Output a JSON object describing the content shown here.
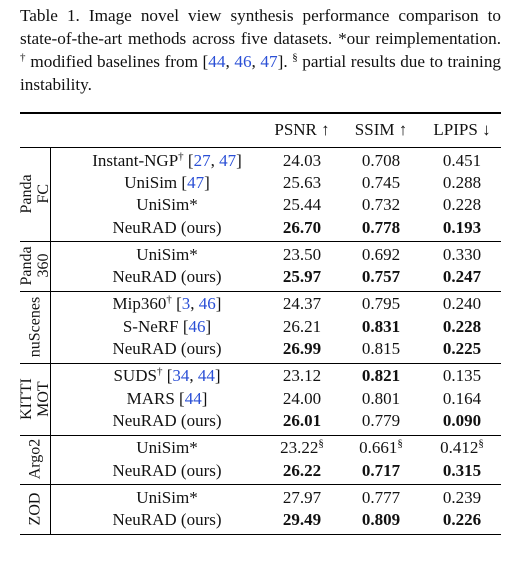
{
  "caption": [
    {
      "t": "Table 1.  Image novel view synthesis performance comparison to state-of-the-art methods across five datasets. *our reimplementa­tion. "
    },
    {
      "t": "†",
      "sup": true
    },
    {
      "t": " modified baselines from ["
    },
    {
      "t": "44",
      "cite": true
    },
    {
      "t": ", "
    },
    {
      "t": "46",
      "cite": true
    },
    {
      "t": ", "
    },
    {
      "t": "47",
      "cite": true
    },
    {
      "t": "]. "
    },
    {
      "t": "§",
      "sup": true
    },
    {
      "t": " partial results due to training instability."
    }
  ],
  "table": {
    "header": [
      "PSNR ↑",
      "SSIM ↑",
      "LPIPS ↓"
    ],
    "groups": [
      {
        "label": [
          "Panda",
          "FC"
        ],
        "rows": [
          {
            "method": [
              {
                "t": "Instant-NGP"
              },
              {
                "t": "†",
                "sup": true
              },
              {
                "t": " ["
              },
              {
                "t": "27",
                "cite": true
              },
              {
                "t": ", "
              },
              {
                "t": "47",
                "cite": true
              },
              {
                "t": "]"
              }
            ],
            "cells": [
              {
                "t": "24.03"
              },
              {
                "t": "0.708"
              },
              {
                "t": "0.451"
              }
            ]
          },
          {
            "method": [
              {
                "t": "UniSim ["
              },
              {
                "t": "47",
                "cite": true
              },
              {
                "t": "]"
              }
            ],
            "cells": [
              {
                "t": "25.63"
              },
              {
                "t": "0.745"
              },
              {
                "t": "0.288"
              }
            ]
          },
          {
            "method": [
              {
                "t": "UniSim*"
              }
            ],
            "cells": [
              {
                "t": "25.44"
              },
              {
                "t": "0.732"
              },
              {
                "t": "0.228"
              }
            ]
          },
          {
            "method": [
              {
                "t": "NeuRAD (ours)"
              }
            ],
            "cells": [
              {
                "t": "26.70",
                "bold": true
              },
              {
                "t": "0.778",
                "bold": true
              },
              {
                "t": "0.193",
                "bold": true
              }
            ]
          }
        ]
      },
      {
        "label": [
          "Panda",
          "360"
        ],
        "rows": [
          {
            "method": [
              {
                "t": "UniSim*"
              }
            ],
            "cells": [
              {
                "t": "23.50"
              },
              {
                "t": "0.692"
              },
              {
                "t": "0.330"
              }
            ]
          },
          {
            "method": [
              {
                "t": "NeuRAD (ours)"
              }
            ],
            "cells": [
              {
                "t": "25.97",
                "bold": true
              },
              {
                "t": "0.757",
                "bold": true
              },
              {
                "t": "0.247",
                "bold": true
              }
            ]
          }
        ]
      },
      {
        "label": [
          "nuScenes"
        ],
        "rows": [
          {
            "method": [
              {
                "t": "Mip360"
              },
              {
                "t": "†",
                "sup": true
              },
              {
                "t": " ["
              },
              {
                "t": "3",
                "cite": true
              },
              {
                "t": ", "
              },
              {
                "t": "46",
                "cite": true
              },
              {
                "t": "]"
              }
            ],
            "cells": [
              {
                "t": "24.37"
              },
              {
                "t": "0.795"
              },
              {
                "t": "0.240"
              }
            ]
          },
          {
            "method": [
              {
                "t": "S-NeRF ["
              },
              {
                "t": "46",
                "cite": true
              },
              {
                "t": "]"
              }
            ],
            "cells": [
              {
                "t": "26.21"
              },
              {
                "t": "0.831",
                "bold": true
              },
              {
                "t": "0.228",
                "bold": true
              }
            ]
          },
          {
            "method": [
              {
                "t": "NeuRAD (ours)"
              }
            ],
            "cells": [
              {
                "t": "26.99",
                "bold": true
              },
              {
                "t": "0.815"
              },
              {
                "t": "0.225",
                "bold": true
              }
            ]
          }
        ]
      },
      {
        "label": [
          "KITTI",
          "MOT"
        ],
        "rows": [
          {
            "method": [
              {
                "t": "SUDS"
              },
              {
                "t": "†",
                "sup": true
              },
              {
                "t": " ["
              },
              {
                "t": "34",
                "cite": true
              },
              {
                "t": ", "
              },
              {
                "t": "44",
                "cite": true
              },
              {
                "t": "]"
              }
            ],
            "cells": [
              {
                "t": "23.12"
              },
              {
                "t": "0.821",
                "bold": true
              },
              {
                "t": "0.135"
              }
            ]
          },
          {
            "method": [
              {
                "t": "MARS ["
              },
              {
                "t": "44",
                "cite": true
              },
              {
                "t": "]"
              }
            ],
            "cells": [
              {
                "t": "24.00"
              },
              {
                "t": "0.801"
              },
              {
                "t": "0.164"
              }
            ]
          },
          {
            "method": [
              {
                "t": "NeuRAD (ours)"
              }
            ],
            "cells": [
              {
                "t": "26.01",
                "bold": true
              },
              {
                "t": "0.779"
              },
              {
                "t": "0.090",
                "bold": true
              }
            ]
          }
        ]
      },
      {
        "label": [
          "Argo2"
        ],
        "rows": [
          {
            "method": [
              {
                "t": "UniSim*"
              }
            ],
            "cells": [
              {
                "t": "23.22",
                "sup": "§"
              },
              {
                "t": "0.661",
                "sup": "§"
              },
              {
                "t": "0.412",
                "sup": "§"
              }
            ]
          },
          {
            "method": [
              {
                "t": "NeuRAD (ours)"
              }
            ],
            "cells": [
              {
                "t": "26.22",
                "bold": true
              },
              {
                "t": "0.717",
                "bold": true
              },
              {
                "t": "0.315",
                "bold": true
              }
            ]
          }
        ]
      },
      {
        "label": [
          "ZOD"
        ],
        "rows": [
          {
            "method": [
              {
                "t": "UniSim*"
              }
            ],
            "cells": [
              {
                "t": "27.97"
              },
              {
                "t": "0.777"
              },
              {
                "t": "0.239"
              }
            ]
          },
          {
            "method": [
              {
                "t": "NeuRAD (ours)"
              }
            ],
            "cells": [
              {
                "t": "29.49",
                "bold": true
              },
              {
                "t": "0.809",
                "bold": true
              },
              {
                "t": "0.226",
                "bold": true
              }
            ]
          }
        ]
      }
    ]
  }
}
